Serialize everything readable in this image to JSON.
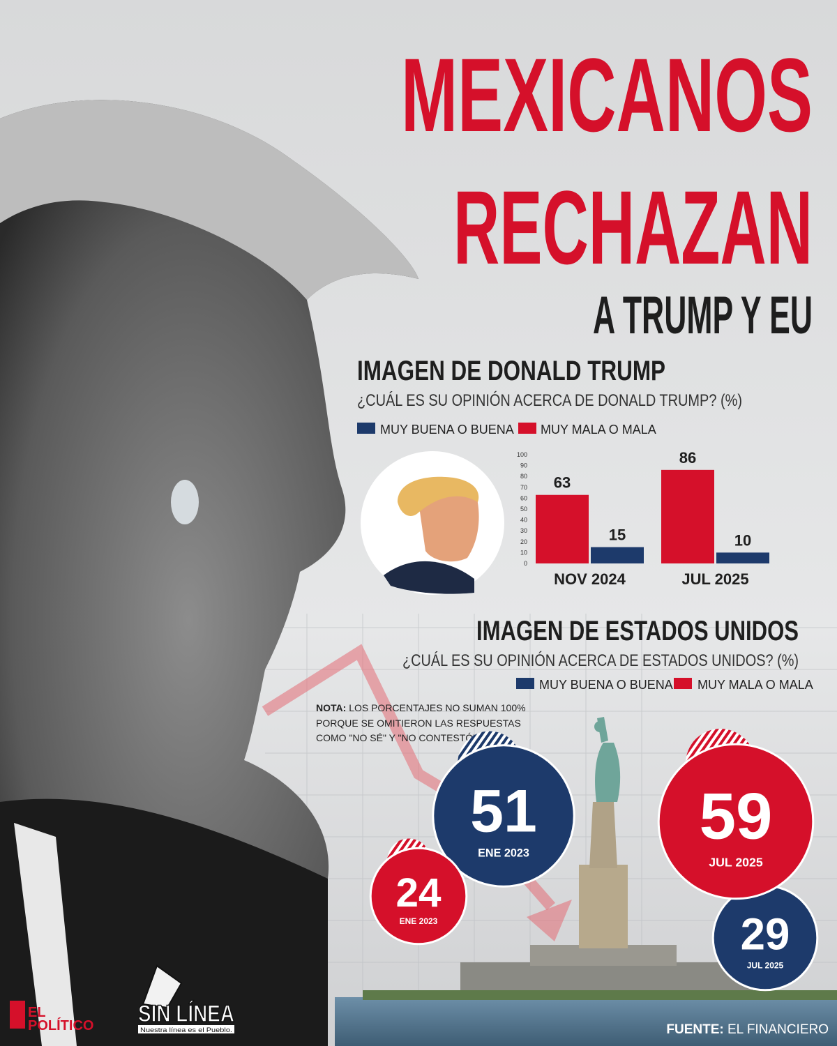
{
  "header": {
    "line1": "MEXICANOS",
    "line2": "RECHAZAN",
    "line3": "A TRUMP Y EU"
  },
  "chart_data": [
    {
      "type": "bar",
      "title": "IMAGEN DE DONALD TRUMP",
      "subtitle": "¿CUÁL ES SU OPINIÓN ACERCA DE DONALD TRUMP? (%)",
      "categories": [
        "NOV 2024",
        "JUL 2025"
      ],
      "series": [
        {
          "name": "MUY BUENA O BUENA",
          "color": "#1d3a6b",
          "values": [
            15,
            10
          ]
        },
        {
          "name": "MUY MALA O MALA",
          "color": "#d5102a",
          "values": [
            63,
            86
          ]
        }
      ],
      "ylim": [
        0,
        100
      ],
      "yticks": [
        0,
        10,
        20,
        30,
        40,
        50,
        60,
        70,
        80,
        90,
        100
      ],
      "grid": false
    },
    {
      "type": "bubble",
      "title": "IMAGEN DE ESTADOS UNIDOS",
      "subtitle": "¿CUÁL ES SU OPINIÓN ACERCA DE ESTADOS UNIDOS? (%)",
      "categories": [
        "ENE 2023",
        "JUL 2025"
      ],
      "series": [
        {
          "name": "MUY BUENA O BUENA",
          "color": "#1d3a6b",
          "values": [
            51,
            29
          ]
        },
        {
          "name": "MUY MALA O MALA",
          "color": "#d5102a",
          "values": [
            24,
            59
          ]
        }
      ]
    }
  ],
  "note": {
    "label": "NOTA:",
    "lines": [
      "LOS PORCENTAJES NO SUMAN 100%",
      "PORQUE SE OMITIERON LAS RESPUESTAS",
      "COMO \"NO SÉ\" Y \"NO CONTESTÓ\""
    ]
  },
  "source": {
    "label": "FUENTE:",
    "text": "EL FINANCIERO"
  },
  "logos": {
    "politico_top": "EL",
    "politico": "POLÍTICO",
    "sinlinea": "SIN LÍNEA",
    "sinlinea_tagline": "Nuestra línea es el Pueblo."
  }
}
